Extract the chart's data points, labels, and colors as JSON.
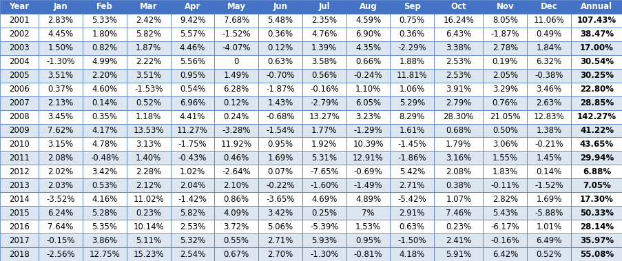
{
  "headers": [
    "Year",
    "Jan",
    "Feb",
    "Mar",
    "Apr",
    "May",
    "Jun",
    "Jul",
    "Aug",
    "Sep",
    "Oct",
    "Nov",
    "Dec",
    "Annual"
  ],
  "rows": [
    [
      "2001",
      "2.83%",
      "5.33%",
      "2.42%",
      "9.42%",
      "7.68%",
      "5.48%",
      "2.35%",
      "4.59%",
      "0.75%",
      "16.24%",
      "8.05%",
      "11.06%",
      "107.43%"
    ],
    [
      "2002",
      "4.45%",
      "1.80%",
      "5.82%",
      "5.57%",
      "-1.52%",
      "0.36%",
      "4.76%",
      "6.90%",
      "0.36%",
      "6.43%",
      "-1.87%",
      "0.49%",
      "38.47%"
    ],
    [
      "2003",
      "1.50%",
      "0.82%",
      "1.87%",
      "4.46%",
      "-4.07%",
      "0.12%",
      "1.39%",
      "4.35%",
      "-2.29%",
      "3.38%",
      "2.78%",
      "1.84%",
      "17.00%"
    ],
    [
      "2004",
      "-1.30%",
      "4.99%",
      "2.22%",
      "5.56%",
      "0",
      "0.63%",
      "3.58%",
      "0.66%",
      "1.88%",
      "2.53%",
      "0.19%",
      "6.32%",
      "30.54%"
    ],
    [
      "2005",
      "3.51%",
      "2.20%",
      "3.51%",
      "0.95%",
      "1.49%",
      "-0.70%",
      "0.56%",
      "-0.24%",
      "11.81%",
      "2.53%",
      "2.05%",
      "-0.38%",
      "30.25%"
    ],
    [
      "2006",
      "0.37%",
      "4.60%",
      "-1.53%",
      "0.54%",
      "6.28%",
      "-1.87%",
      "-0.16%",
      "1.10%",
      "1.06%",
      "3.91%",
      "3.29%",
      "3.46%",
      "22.80%"
    ],
    [
      "2007",
      "2.13%",
      "0.14%",
      "0.52%",
      "6.96%",
      "0.12%",
      "1.43%",
      "-2.79%",
      "6.05%",
      "5.29%",
      "2.79%",
      "0.76%",
      "2.63%",
      "28.85%"
    ],
    [
      "2008",
      "3.45%",
      "0.35%",
      "1.18%",
      "4.41%",
      "0.24%",
      "-0.68%",
      "13.27%",
      "3.23%",
      "8.29%",
      "28.30%",
      "21.05%",
      "12.83%",
      "142.27%"
    ],
    [
      "2009",
      "7.62%",
      "4.17%",
      "13.53%",
      "11.27%",
      "-3.28%",
      "-1.54%",
      "1.77%",
      "-1.29%",
      "1.61%",
      "0.68%",
      "0.50%",
      "1.38%",
      "41.22%"
    ],
    [
      "2010",
      "3.15%",
      "4.78%",
      "3.13%",
      "-1.75%",
      "11.92%",
      "0.95%",
      "1.92%",
      "10.39%",
      "-1.45%",
      "1.79%",
      "3.06%",
      "-0.21%",
      "43.65%"
    ],
    [
      "2011",
      "2.08%",
      "-0.48%",
      "1.40%",
      "-0.43%",
      "0.46%",
      "1.69%",
      "5.31%",
      "12.91%",
      "-1.86%",
      "3.16%",
      "1.55%",
      "1.45%",
      "29.94%"
    ],
    [
      "2012",
      "2.02%",
      "3.42%",
      "2.28%",
      "1.02%",
      "-2.64%",
      "0.07%",
      "-7.65%",
      "-0.69%",
      "5.42%",
      "2.08%",
      "1.83%",
      "0.14%",
      "6.88%"
    ],
    [
      "2013",
      "2.03%",
      "0.53%",
      "2.12%",
      "2.04%",
      "2.10%",
      "-0.22%",
      "-1.60%",
      "-1.49%",
      "2.71%",
      "0.38%",
      "-0.11%",
      "-1.52%",
      "7.05%"
    ],
    [
      "2014",
      "-3.52%",
      "4.16%",
      "11.02%",
      "-1.42%",
      "0.86%",
      "-3.65%",
      "4.69%",
      "4.89%",
      "-5.42%",
      "1.07%",
      "2.82%",
      "1.69%",
      "17.30%"
    ],
    [
      "2015",
      "6.24%",
      "5.28%",
      "0.23%",
      "5.82%",
      "4.09%",
      "3.42%",
      "0.25%",
      "7%",
      "2.91%",
      "7.46%",
      "5.43%",
      "-5.88%",
      "50.33%"
    ],
    [
      "2016",
      "7.64%",
      "5.35%",
      "10.14%",
      "2.53%",
      "3.72%",
      "5.06%",
      "-5.39%",
      "1.53%",
      "0.63%",
      "0.23%",
      "-6.17%",
      "1.01%",
      "28.14%"
    ],
    [
      "2017",
      "-0.15%",
      "3.86%",
      "5.11%",
      "5.32%",
      "0.55%",
      "2.71%",
      "5.93%",
      "0.95%",
      "-1.50%",
      "2.41%",
      "-0.16%",
      "6.49%",
      "35.97%"
    ],
    [
      "2018",
      "-2.56%",
      "12.75%",
      "15.23%",
      "2.54%",
      "0.67%",
      "2.70%",
      "-1.30%",
      "-0.81%",
      "4.18%",
      "5.91%",
      "6.42%",
      "0.52%",
      "55.08%"
    ]
  ],
  "header_bg": "#4472C4",
  "header_text": "#FFFFFF",
  "row_bg_white": "#FFFFFF",
  "row_bg_blue": "#DCE6F1",
  "row_colors": [
    0,
    0,
    1,
    0,
    1,
    0,
    1,
    0,
    1,
    0,
    1,
    0,
    1,
    0,
    1,
    0,
    1,
    1
  ],
  "cell_text": "#000000",
  "border_color": "#4472C4",
  "font_size": 8.5,
  "header_font_size": 8.5,
  "col_weights": [
    0.75,
    0.85,
    0.85,
    0.85,
    0.85,
    0.85,
    0.85,
    0.85,
    0.85,
    0.85,
    0.95,
    0.85,
    0.85,
    1.0
  ]
}
